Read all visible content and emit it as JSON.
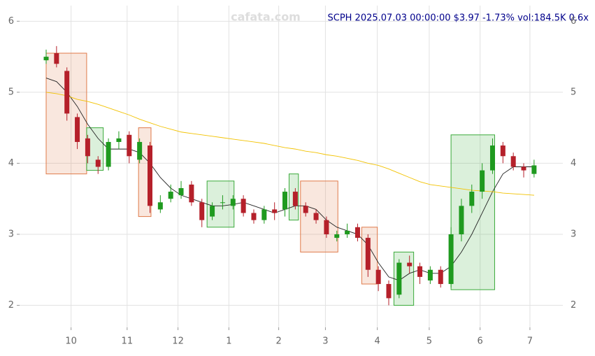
{
  "chart_data": {
    "type": "candlestick",
    "title": "SCPH 2025.07.03 00:00:00 $3.97 -1.73% vol:184.5K 0.6x",
    "watermark": "cafata.com",
    "xlim": [
      -2.56,
      49.77
    ],
    "xticks": [
      {
        "value": 2.4,
        "label": "10"
      },
      {
        "value": 7.8,
        "label": "11"
      },
      {
        "value": 12.7,
        "label": "12"
      },
      {
        "value": 17.6,
        "label": "1"
      },
      {
        "value": 22.4,
        "label": "2"
      },
      {
        "value": 26.9,
        "label": "3"
      },
      {
        "value": 31.9,
        "label": "4"
      },
      {
        "value": 36.9,
        "label": "5"
      },
      {
        "value": 41.8,
        "label": "6"
      },
      {
        "value": 46.6,
        "label": "7"
      }
    ],
    "ylim": [
      1.69,
      6.22
    ],
    "yticks": [
      2,
      3,
      4,
      5,
      6
    ],
    "grid": true,
    "up_color": "#1f9a1f",
    "down_color": "#b5202a",
    "open": [
      5.45,
      5.55,
      5.3,
      4.65,
      4.35,
      4.05,
      3.95,
      4.3,
      4.4,
      4.05,
      4.25,
      3.35,
      3.5,
      3.55,
      3.7,
      3.45,
      3.25,
      3.45,
      3.4,
      3.5,
      3.3,
      3.2,
      3.35,
      3.35,
      3.6,
      3.4,
      3.3,
      3.2,
      2.95,
      3.0,
      3.1,
      2.95,
      2.5,
      2.3,
      2.15,
      2.6,
      2.55,
      2.35,
      2.5,
      2.3,
      3.0,
      3.4,
      3.6,
      3.9,
      4.25,
      4.1,
      3.95,
      3.85
    ],
    "high": [
      5.6,
      5.65,
      5.35,
      4.7,
      4.4,
      4.1,
      4.35,
      4.45,
      4.45,
      4.35,
      4.3,
      3.55,
      3.7,
      3.75,
      3.75,
      3.5,
      3.45,
      3.55,
      3.55,
      3.55,
      3.35,
      3.4,
      3.45,
      3.65,
      3.65,
      3.45,
      3.35,
      3.25,
      3.05,
      3.15,
      3.15,
      3.0,
      2.55,
      2.35,
      2.65,
      2.7,
      2.6,
      2.55,
      2.55,
      3.1,
      3.5,
      3.7,
      4.0,
      4.35,
      4.3,
      4.15,
      4.0,
      4.05
    ],
    "low": [
      5.4,
      5.35,
      4.6,
      4.2,
      4.0,
      3.85,
      3.9,
      4.2,
      4.0,
      4.0,
      3.3,
      3.3,
      3.45,
      3.5,
      3.4,
      3.1,
      3.2,
      3.35,
      3.35,
      3.25,
      3.15,
      3.15,
      3.2,
      3.25,
      3.35,
      3.25,
      3.15,
      2.95,
      2.9,
      2.95,
      2.9,
      2.4,
      2.2,
      2.0,
      2.1,
      2.45,
      2.3,
      2.3,
      2.25,
      2.25,
      2.9,
      3.3,
      3.5,
      3.85,
      4.0,
      3.9,
      3.8,
      3.8
    ],
    "close": [
      5.5,
      5.4,
      4.7,
      4.3,
      4.1,
      3.95,
      4.3,
      4.35,
      4.1,
      4.3,
      3.4,
      3.45,
      3.6,
      3.65,
      3.45,
      3.2,
      3.4,
      3.45,
      3.5,
      3.3,
      3.2,
      3.35,
      3.3,
      3.6,
      3.4,
      3.3,
      3.2,
      3.0,
      3.0,
      3.05,
      2.95,
      2.5,
      2.3,
      2.1,
      2.6,
      2.55,
      2.4,
      2.5,
      2.3,
      3.0,
      3.4,
      3.6,
      3.9,
      4.25,
      4.1,
      3.95,
      3.9,
      3.97
    ],
    "lines": [
      {
        "color": "#222222",
        "values": [
          5.2,
          5.15,
          5.0,
          4.8,
          4.55,
          4.35,
          4.2,
          4.2,
          4.2,
          4.15,
          4.0,
          3.8,
          3.65,
          3.55,
          3.5,
          3.45,
          3.4,
          3.4,
          3.42,
          3.45,
          3.4,
          3.35,
          3.3,
          3.35,
          3.4,
          3.4,
          3.35,
          3.2,
          3.1,
          3.05,
          3.0,
          2.85,
          2.6,
          2.4,
          2.35,
          2.45,
          2.5,
          2.45,
          2.45,
          2.55,
          2.75,
          3.0,
          3.3,
          3.6,
          3.85,
          3.95,
          3.95,
          3.95
        ]
      },
      {
        "color": "#f2c200",
        "values": [
          5.0,
          4.98,
          4.95,
          4.9,
          4.87,
          4.83,
          4.78,
          4.73,
          4.68,
          4.62,
          4.57,
          4.52,
          4.48,
          4.44,
          4.42,
          4.4,
          4.38,
          4.36,
          4.34,
          4.32,
          4.3,
          4.28,
          4.25,
          4.22,
          4.2,
          4.17,
          4.15,
          4.12,
          4.1,
          4.07,
          4.04,
          4.0,
          3.97,
          3.92,
          3.86,
          3.8,
          3.74,
          3.7,
          3.68,
          3.66,
          3.64,
          3.62,
          3.61,
          3.6,
          3.58,
          3.57,
          3.56,
          3.55
        ]
      }
    ],
    "boxes": [
      {
        "x": [
          0,
          3.9
        ],
        "y": [
          3.85,
          5.55
        ],
        "color": "#e07a4a"
      },
      {
        "x": [
          3.9,
          5.5
        ],
        "y": [
          3.9,
          4.5
        ],
        "color": "#3aaa3a"
      },
      {
        "x": [
          8.9,
          10.1
        ],
        "y": [
          3.25,
          4.5
        ],
        "color": "#e07a4a"
      },
      {
        "x": [
          15.5,
          18.1
        ],
        "y": [
          3.1,
          3.75
        ],
        "color": "#3aaa3a"
      },
      {
        "x": [
          23.4,
          24.3
        ],
        "y": [
          3.2,
          3.85
        ],
        "color": "#3aaa3a"
      },
      {
        "x": [
          24.5,
          28.1
        ],
        "y": [
          2.75,
          3.75
        ],
        "color": "#e07a4a"
      },
      {
        "x": [
          30.4,
          31.9
        ],
        "y": [
          2.3,
          3.1
        ],
        "color": "#e07a4a"
      },
      {
        "x": [
          33.5,
          35.4
        ],
        "y": [
          2.0,
          2.75
        ],
        "color": "#3aaa3a"
      },
      {
        "x": [
          39.0,
          43.2
        ],
        "y": [
          2.22,
          4.4
        ],
        "color": "#3aaa3a"
      }
    ]
  }
}
